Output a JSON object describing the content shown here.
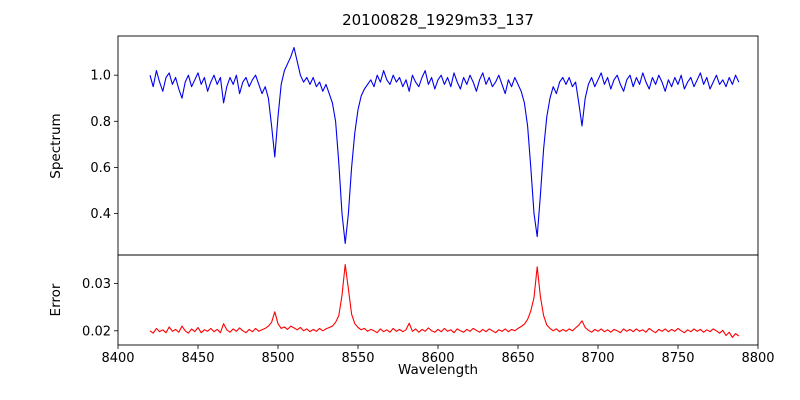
{
  "figure": {
    "background": "#ffffff",
    "axes_color": "#000000"
  },
  "chart_data": [
    {
      "type": "line",
      "title": "20100828_1929m33_137",
      "ylabel": "Spectrum",
      "color": "#0000ee",
      "xlim": [
        8400,
        8800
      ],
      "ylim": [
        0.22,
        1.17
      ],
      "yticks": [
        0.4,
        0.6,
        0.8,
        1.0
      ],
      "ytick_labels": [
        "0.4",
        "0.6",
        "0.8",
        "1.0"
      ],
      "grid": false,
      "legend": null,
      "x_start": 8420,
      "x_step": 2,
      "values": [
        1.0,
        0.95,
        1.02,
        0.97,
        0.93,
        0.99,
        1.01,
        0.96,
        0.99,
        0.94,
        0.9,
        0.97,
        1.0,
        0.95,
        0.98,
        1.01,
        0.96,
        0.99,
        0.93,
        0.97,
        1.0,
        0.96,
        0.99,
        0.88,
        0.95,
        0.99,
        0.96,
        1.0,
        0.92,
        0.97,
        0.99,
        0.95,
        0.98,
        1.0,
        0.96,
        0.92,
        0.95,
        0.9,
        0.78,
        0.645,
        0.82,
        0.96,
        1.02,
        1.05,
        1.08,
        1.12,
        1.06,
        1.0,
        0.97,
        0.99,
        0.96,
        0.99,
        0.95,
        0.97,
        0.93,
        0.96,
        0.92,
        0.88,
        0.8,
        0.62,
        0.4,
        0.27,
        0.4,
        0.6,
        0.75,
        0.85,
        0.91,
        0.94,
        0.96,
        0.98,
        0.95,
        1.0,
        0.97,
        1.02,
        0.98,
        0.96,
        1.0,
        0.97,
        0.99,
        0.95,
        0.98,
        0.93,
        1.0,
        0.97,
        0.95,
        0.99,
        1.02,
        0.96,
        0.99,
        0.94,
        0.98,
        1.0,
        0.96,
        0.99,
        0.95,
        1.01,
        0.97,
        0.94,
        0.99,
        0.96,
        1.0,
        0.97,
        0.93,
        0.98,
        1.01,
        0.96,
        0.99,
        0.95,
        0.97,
        1.0,
        0.96,
        0.92,
        0.98,
        0.95,
        0.99,
        0.96,
        0.93,
        0.88,
        0.78,
        0.6,
        0.4,
        0.3,
        0.48,
        0.68,
        0.82,
        0.9,
        0.95,
        0.92,
        0.97,
        0.99,
        0.96,
        0.99,
        0.95,
        0.97,
        0.88,
        0.78,
        0.9,
        0.96,
        0.99,
        0.95,
        0.98,
        1.01,
        0.96,
        0.99,
        0.94,
        0.98,
        1.0,
        0.96,
        0.93,
        0.98,
        1.0,
        0.95,
        0.99,
        0.96,
        1.01,
        0.97,
        0.94,
        0.99,
        0.96,
        1.0,
        0.97,
        0.93,
        0.98,
        0.95,
        0.99,
        0.96,
        1.0,
        0.94,
        0.97,
        0.99,
        0.95,
        0.98,
        1.01,
        0.96,
        0.99,
        0.94,
        0.97,
        1.0,
        0.96,
        0.98,
        0.95,
        0.99,
        0.96,
        1.0,
        0.97
      ]
    },
    {
      "type": "line",
      "ylabel": "Error",
      "xlabel": "Wavelength",
      "color": "#ff0000",
      "xlim": [
        8400,
        8800
      ],
      "ylim": [
        0.017,
        0.036
      ],
      "yticks": [
        0.02,
        0.03
      ],
      "ytick_labels": [
        "0.02",
        "0.03"
      ],
      "xticks": [
        8400,
        8450,
        8500,
        8550,
        8600,
        8650,
        8700,
        8750,
        8800
      ],
      "xtick_labels": [
        "8400",
        "8450",
        "8500",
        "8550",
        "8600",
        "8650",
        "8700",
        "8750",
        "8800"
      ],
      "grid": false,
      "legend": null,
      "x_start": 8420,
      "x_step": 2,
      "values": [
        0.02,
        0.0195,
        0.0205,
        0.0198,
        0.0202,
        0.0196,
        0.0208,
        0.0199,
        0.0203,
        0.0197,
        0.021,
        0.02,
        0.0195,
        0.0204,
        0.0198,
        0.0207,
        0.0196,
        0.0202,
        0.0199,
        0.0205,
        0.0198,
        0.0203,
        0.0196,
        0.0215,
        0.0202,
        0.0197,
        0.0204,
        0.0199,
        0.0206,
        0.02,
        0.0196,
        0.0203,
        0.0198,
        0.0205,
        0.0199,
        0.0202,
        0.0205,
        0.021,
        0.0218,
        0.024,
        0.0215,
        0.0205,
        0.0208,
        0.0203,
        0.021,
        0.0206,
        0.0202,
        0.0207,
        0.02,
        0.0204,
        0.0198,
        0.0203,
        0.0199,
        0.0205,
        0.02,
        0.0204,
        0.0207,
        0.021,
        0.0218,
        0.0232,
        0.0275,
        0.034,
        0.0288,
        0.0235,
        0.0215,
        0.0207,
        0.0202,
        0.0205,
        0.0199,
        0.0203,
        0.02,
        0.0196,
        0.0204,
        0.0198,
        0.0202,
        0.0197,
        0.0205,
        0.0199,
        0.0203,
        0.0198,
        0.0202,
        0.0216,
        0.0199,
        0.0204,
        0.0197,
        0.0203,
        0.0199,
        0.0206,
        0.02,
        0.0197,
        0.0203,
        0.0198,
        0.0205,
        0.0199,
        0.0202,
        0.0196,
        0.0204,
        0.02,
        0.0197,
        0.0203,
        0.0199,
        0.0205,
        0.0201,
        0.0197,
        0.0203,
        0.0198,
        0.0204,
        0.02,
        0.0196,
        0.0202,
        0.0199,
        0.0204,
        0.0198,
        0.0203,
        0.02,
        0.0205,
        0.0209,
        0.0214,
        0.0224,
        0.0242,
        0.027,
        0.0335,
        0.0272,
        0.0232,
        0.0212,
        0.0205,
        0.02,
        0.0204,
        0.0198,
        0.0203,
        0.0199,
        0.0204,
        0.02,
        0.0206,
        0.0212,
        0.0221,
        0.0207,
        0.0201,
        0.0197,
        0.0203,
        0.0199,
        0.0204,
        0.0198,
        0.0202,
        0.0197,
        0.0203,
        0.02,
        0.0196,
        0.0204,
        0.0199,
        0.0203,
        0.0198,
        0.0204,
        0.0199,
        0.0202,
        0.0197,
        0.0205,
        0.02,
        0.0196,
        0.0203,
        0.0199,
        0.0204,
        0.0198,
        0.0203,
        0.0199,
        0.0205,
        0.02,
        0.0196,
        0.0202,
        0.0198,
        0.0204,
        0.0199,
        0.0203,
        0.0197,
        0.0202,
        0.0198,
        0.0204,
        0.02,
        0.0195,
        0.0201,
        0.019,
        0.0197,
        0.0186,
        0.0194,
        0.0189
      ]
    }
  ]
}
